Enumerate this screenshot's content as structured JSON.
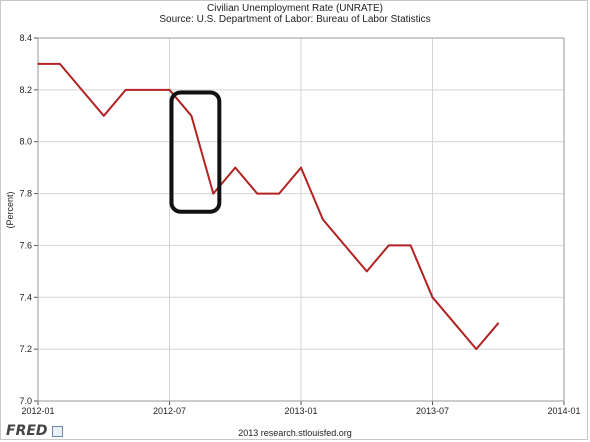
{
  "header": {
    "title": "Civilian Unemployment Rate (UNRATE)",
    "source": "Source: U.S. Department of Labor: Bureau of Labor Statistics"
  },
  "footer": {
    "logo": "FRED",
    "credit": "2013 research.stlouisfed.org"
  },
  "colors": {
    "series": "#b22222",
    "grid": "#d4d4d4",
    "axis": "#555555",
    "annotation": "#111111"
  },
  "chart_data": {
    "type": "line",
    "title": "Civilian Unemployment Rate (UNRATE)",
    "subtitle": "Source: U.S. Department of Labor: Bureau of Labor Statistics",
    "xlabel": "",
    "ylabel": "(Percent)",
    "ylim": [
      7.0,
      8.4
    ],
    "xlim": [
      "2012-01",
      "2014-01"
    ],
    "grid": true,
    "x_ticks": [
      "2012-01",
      "2012-07",
      "2013-01",
      "2013-07",
      "2014-01"
    ],
    "y_ticks": [
      "7.0",
      "7.2",
      "7.4",
      "7.6",
      "7.8",
      "8.0",
      "8.2",
      "8.4"
    ],
    "series": [
      {
        "x": [
          "2012-01",
          "2012-02",
          "2012-03",
          "2012-04",
          "2012-05",
          "2012-06",
          "2012-07",
          "2012-08",
          "2012-09",
          "2012-10",
          "2012-11",
          "2012-12",
          "2013-01",
          "2013-02",
          "2013-03",
          "2013-04",
          "2013-05",
          "2013-06",
          "2013-07",
          "2013-08",
          "2013-09",
          "2013-10"
        ],
        "values": [
          8.3,
          8.3,
          8.2,
          8.1,
          8.2,
          8.2,
          8.2,
          8.1,
          7.8,
          7.9,
          7.8,
          7.8,
          7.9,
          7.7,
          7.6,
          7.5,
          7.6,
          7.6,
          7.4,
          7.3,
          7.2,
          7.3
        ]
      }
    ],
    "annotations": [
      {
        "type": "rounded-rectangle",
        "x_range": [
          "2012-07",
          "2012-09"
        ],
        "y_range": [
          7.73,
          8.19
        ]
      }
    ]
  }
}
